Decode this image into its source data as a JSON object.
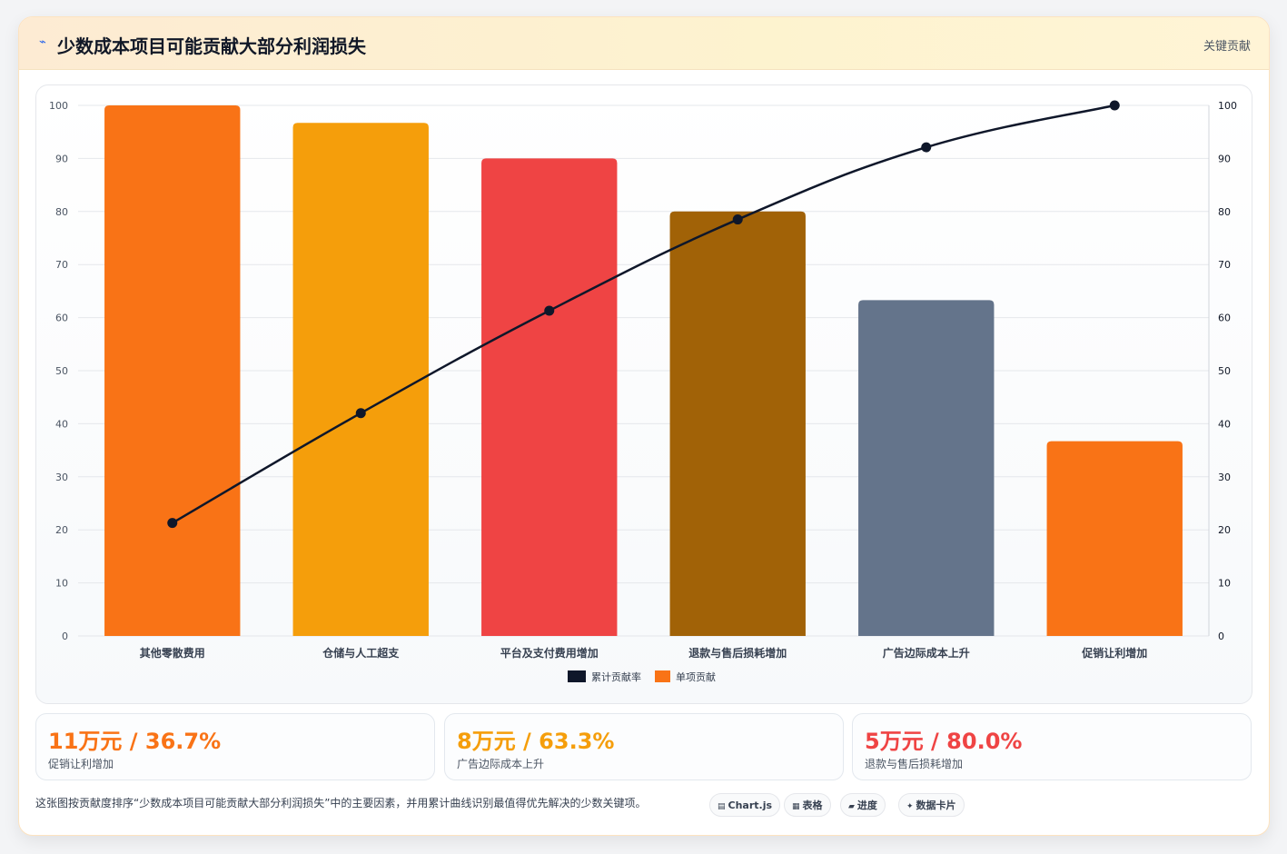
{
  "header": {
    "icon": "bolt-icon",
    "title": "少数成本项目可能贡献大部分利润损失",
    "badge": "关键贡献"
  },
  "chart_data": {
    "type": "bar",
    "categories": [
      "其他零散费用",
      "仓储与人工超支",
      "平台及支付费用增加",
      "退款与售后损耗增加",
      "广告边际成本上升",
      "促销让利增加"
    ],
    "series": [
      {
        "name": "单项贡献",
        "type": "bar",
        "values": [
          100,
          96.7,
          90,
          80,
          63.3,
          36.7
        ],
        "colors": [
          "#f97316",
          "#f59e0b",
          "#ef4444",
          "#a16207",
          "#64748b",
          "#f97316"
        ]
      },
      {
        "name": "累计贡献率",
        "type": "line",
        "values": [
          21.3,
          42.0,
          61.3,
          78.5,
          92.1,
          100
        ],
        "color": "#0f172a"
      }
    ],
    "ylim": [
      0,
      100
    ],
    "yticks": [
      0,
      10,
      20,
      30,
      40,
      50,
      60,
      70,
      80,
      90,
      100
    ],
    "grid": true,
    "legend_position": "bottom"
  },
  "kpis": [
    {
      "value": "11万元 / 36.7%",
      "label": "促销让利增加",
      "color": "#f97316"
    },
    {
      "value": "8万元 / 63.3%",
      "label": "广告边际成本上升",
      "color": "#f59e0b"
    },
    {
      "value": "5万元 / 80.0%",
      "label": "退款与售后损耗增加",
      "color": "#ef4444"
    }
  ],
  "footer": {
    "text": "这张图按贡献度排序“少数成本项目可能贡献大部分利润损失”中的主要因素，并用累计曲线识别最值得优先解决的少数关键项。",
    "chips": [
      {
        "icon": "▤",
        "label": "Chart.js"
      },
      {
        "icon": "▦",
        "label": "表格"
      },
      {
        "icon": "▰",
        "label": "进度"
      },
      {
        "icon": "✦",
        "label": "数据卡片"
      }
    ]
  }
}
